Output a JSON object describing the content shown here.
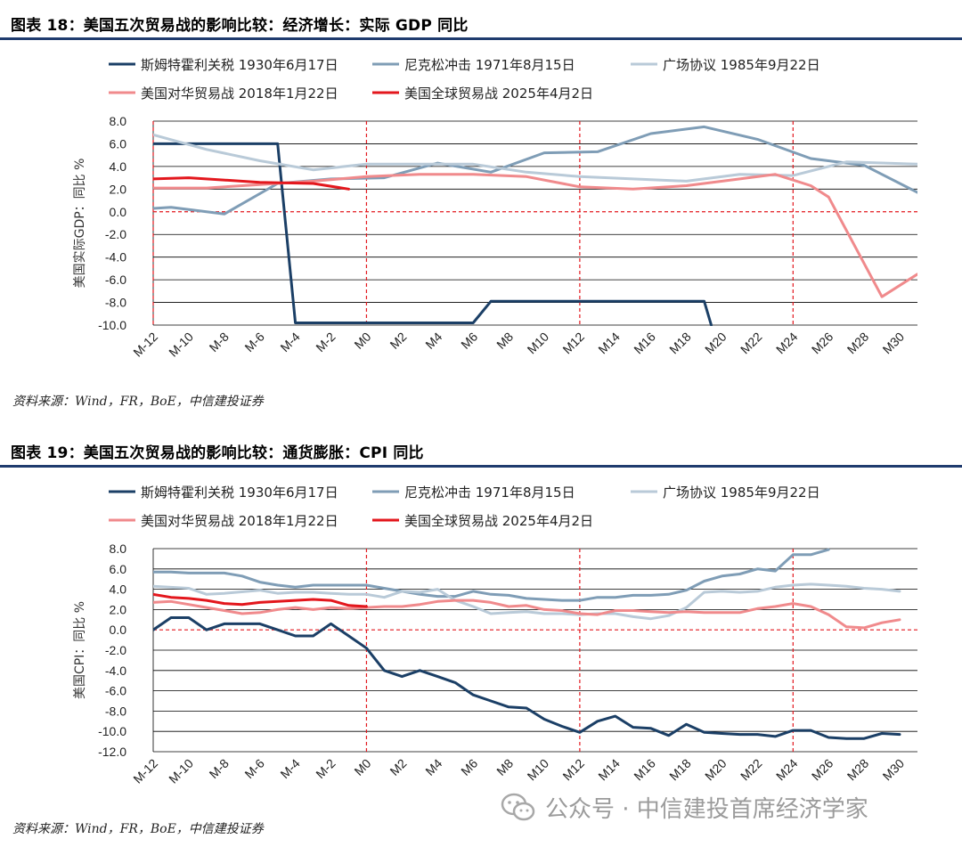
{
  "figures": [
    {
      "title": "图表 18：美国五次贸易战的影响比较：经济增长：实际 GDP 同比",
      "source": "资料来源：Wind，FR，BoE，中信建投证券"
    },
    {
      "title": "图表 19：美国五次贸易战的影响比较：通货膨胀：CPI 同比",
      "source": "资料来源：Wind，FR，BoE，中信建投证券"
    }
  ],
  "watermark": "公众号 · 中信建投首席经济学家",
  "legend": [
    {
      "name": "斯姆特霍利关税 1930年6月17日",
      "color": "#1b3f66"
    },
    {
      "name": "尼克松冲击 1971年8月15日",
      "color": "#7f9db6"
    },
    {
      "name": "广场协议 1985年9月22日",
      "color": "#b9cad8"
    },
    {
      "name": "美国对华贸易战 2018年1月22日",
      "color": "#f08a8c"
    },
    {
      "name": "美国全球贸易战 2025年4月2日",
      "color": "#e3171d"
    }
  ],
  "chart_data": [
    {
      "type": "line",
      "ylabel": "美国实际GDP：同比 %",
      "ylim": [
        -10,
        8
      ],
      "yticks": [
        8,
        6,
        4,
        2,
        0,
        -2,
        -4,
        -6,
        -8,
        -10
      ],
      "ytick_labels": [
        "8.0",
        "6.0",
        "4.0",
        "2.0",
        "0.0",
        "-2.0",
        "-4.0",
        "-6.0",
        "-8.0",
        "-10.0"
      ],
      "x_labels": [
        "M-12",
        "M-10",
        "M-8",
        "M-6",
        "M-4",
        "M-2",
        "M0",
        "M2",
        "M4",
        "M6",
        "M8",
        "M10",
        "M12",
        "M14",
        "M16",
        "M18",
        "M20",
        "M22",
        "M24",
        "M26",
        "M28",
        "M30"
      ],
      "x_range": [
        -12,
        31
      ],
      "vlines": [
        -12,
        0,
        12,
        24
      ],
      "zero_line": true,
      "grid": true,
      "series": [
        {
          "name": "斯姆特霍利关税 1930年6月17日",
          "color": "#1b3f66",
          "points": [
            [
              -12,
              6
            ],
            [
              -5,
              6
            ],
            [
              -4,
              -9.8
            ],
            [
              -3,
              -9.8
            ],
            [
              6,
              -9.8
            ],
            [
              7,
              -7.9
            ],
            [
              19,
              -7.9
            ],
            [
              19.4,
              -10
            ]
          ]
        },
        {
          "name": "尼克松冲击 1971年8月15日",
          "color": "#7f9db6",
          "points": [
            [
              -12,
              0.3
            ],
            [
              -11,
              0.4
            ],
            [
              -8,
              -0.2
            ],
            [
              -5,
              2.5
            ],
            [
              -2,
              2.9
            ],
            [
              1,
              3.0
            ],
            [
              4,
              4.3
            ],
            [
              7,
              3.5
            ],
            [
              10,
              5.2
            ],
            [
              13,
              5.3
            ],
            [
              16,
              6.9
            ],
            [
              19,
              7.5
            ],
            [
              22,
              6.4
            ],
            [
              25,
              4.7
            ],
            [
              28,
              4.1
            ],
            [
              31,
              1.7
            ]
          ]
        },
        {
          "name": "广场协议 1985年9月22日",
          "color": "#b9cad8",
          "points": [
            [
              -12,
              6.8
            ],
            [
              -9,
              5.5
            ],
            [
              -6,
              4.5
            ],
            [
              -3,
              3.7
            ],
            [
              0,
              4.2
            ],
            [
              3,
              4.2
            ],
            [
              6,
              4.2
            ],
            [
              9,
              3.5
            ],
            [
              12,
              3.1
            ],
            [
              15,
              2.9
            ],
            [
              18,
              2.7
            ],
            [
              21,
              3.3
            ],
            [
              24,
              3.2
            ],
            [
              27,
              4.4
            ],
            [
              31,
              4.2
            ]
          ]
        },
        {
          "name": "美国对华贸易战 2018年1月22日",
          "color": "#f08a8c",
          "points": [
            [
              -12,
              2.1
            ],
            [
              -9,
              2.1
            ],
            [
              -6,
              2.4
            ],
            [
              -3,
              2.7
            ],
            [
              0,
              3.1
            ],
            [
              3,
              3.3
            ],
            [
              6,
              3.3
            ],
            [
              9,
              3.1
            ],
            [
              12,
              2.2
            ],
            [
              15,
              2.0
            ],
            [
              18,
              2.3
            ],
            [
              21,
              2.9
            ],
            [
              23,
              3.3
            ],
            [
              25,
              2.3
            ],
            [
              26,
              1.3
            ],
            [
              29,
              -7.5
            ],
            [
              31,
              -5.5
            ]
          ]
        },
        {
          "name": "美国全球贸易战 2025年4月2日",
          "color": "#e3171d",
          "points": [
            [
              -12,
              2.9
            ],
            [
              -10,
              3.0
            ],
            [
              -6,
              2.6
            ],
            [
              -3,
              2.5
            ],
            [
              -1,
              2.0
            ]
          ]
        }
      ]
    },
    {
      "type": "line",
      "ylabel": "美国CPI：同比 %",
      "ylim": [
        -12,
        8
      ],
      "yticks": [
        8,
        6,
        4,
        2,
        0,
        -2,
        -4,
        -6,
        -8,
        -10,
        -12
      ],
      "ytick_labels": [
        "8.0",
        "6.0",
        "4.0",
        "2.0",
        "0.0",
        "-2.0",
        "-4.0",
        "-6.0",
        "-8.0",
        "-10.0",
        "-12.0"
      ],
      "x_labels": [
        "M-12",
        "M-10",
        "M-8",
        "M-6",
        "M-4",
        "M-2",
        "M0",
        "M2",
        "M4",
        "M6",
        "M8",
        "M10",
        "M12",
        "M14",
        "M16",
        "M18",
        "M20",
        "M22",
        "M24",
        "M26",
        "M28",
        "M30"
      ],
      "x_range": [
        -12,
        31
      ],
      "vlines": [
        0,
        12,
        24
      ],
      "zero_line": true,
      "grid": true,
      "series": [
        {
          "name": "斯姆特霍利关税 1930年6月17日",
          "color": "#1b3f66",
          "points": [
            [
              -12,
              0
            ],
            [
              -11,
              1.2
            ],
            [
              -10,
              1.2
            ],
            [
              -9,
              0
            ],
            [
              -8,
              0.6
            ],
            [
              -7,
              0.6
            ],
            [
              -6,
              0.6
            ],
            [
              -5,
              0
            ],
            [
              -4,
              -0.6
            ],
            [
              -3,
              -0.6
            ],
            [
              -2,
              0.6
            ],
            [
              -1,
              -0.6
            ],
            [
              0,
              -1.8
            ],
            [
              1,
              -4.0
            ],
            [
              2,
              -4.6
            ],
            [
              3,
              -4.0
            ],
            [
              4,
              -4.6
            ],
            [
              5,
              -5.2
            ],
            [
              6,
              -6.4
            ],
            [
              7,
              -7.0
            ],
            [
              8,
              -7.6
            ],
            [
              9,
              -7.7
            ],
            [
              10,
              -8.8
            ],
            [
              11,
              -9.5
            ],
            [
              12,
              -10.1
            ],
            [
              13,
              -9.0
            ],
            [
              14,
              -8.5
            ],
            [
              15,
              -9.6
            ],
            [
              16,
              -9.7
            ],
            [
              17,
              -10.4
            ],
            [
              18,
              -9.3
            ],
            [
              19,
              -10.1
            ],
            [
              20,
              -10.2
            ],
            [
              21,
              -10.3
            ],
            [
              22,
              -10.3
            ],
            [
              23,
              -10.5
            ],
            [
              24,
              -9.9
            ],
            [
              25,
              -9.9
            ],
            [
              26,
              -10.6
            ],
            [
              27,
              -10.7
            ],
            [
              28,
              -10.7
            ],
            [
              29,
              -10.2
            ],
            [
              30,
              -10.3
            ]
          ]
        },
        {
          "name": "尼克松冲击 1971年8月15日",
          "color": "#7f9db6",
          "points": [
            [
              -12,
              5.7
            ],
            [
              -11,
              5.7
            ],
            [
              -10,
              5.6
            ],
            [
              -9,
              5.6
            ],
            [
              -8,
              5.6
            ],
            [
              -7,
              5.3
            ],
            [
              -6,
              4.7
            ],
            [
              -5,
              4.4
            ],
            [
              -4,
              4.2
            ],
            [
              -3,
              4.4
            ],
            [
              -2,
              4.4
            ],
            [
              -1,
              4.4
            ],
            [
              0,
              4.4
            ],
            [
              1,
              4.1
            ],
            [
              2,
              3.8
            ],
            [
              3,
              3.5
            ],
            [
              4,
              3.3
            ],
            [
              5,
              3.3
            ],
            [
              6,
              3.8
            ],
            [
              7,
              3.5
            ],
            [
              8,
              3.4
            ],
            [
              9,
              3.1
            ],
            [
              10,
              3.0
            ],
            [
              11,
              2.9
            ],
            [
              12,
              2.9
            ],
            [
              13,
              3.2
            ],
            [
              14,
              3.2
            ],
            [
              15,
              3.4
            ],
            [
              16,
              3.4
            ],
            [
              17,
              3.5
            ],
            [
              18,
              3.9
            ],
            [
              19,
              4.8
            ],
            [
              20,
              5.3
            ],
            [
              21,
              5.5
            ],
            [
              22,
              6.0
            ],
            [
              23,
              5.8
            ],
            [
              24,
              7.4
            ],
            [
              25,
              7.4
            ],
            [
              26,
              7.9
            ]
          ]
        },
        {
          "name": "广场协议 1985年9月22日",
          "color": "#b9cad8",
          "points": [
            [
              -12,
              4.3
            ],
            [
              -10,
              4.1
            ],
            [
              -9,
              3.5
            ],
            [
              -8,
              3.6
            ],
            [
              -6,
              3.9
            ],
            [
              -5,
              3.6
            ],
            [
              -4,
              3.7
            ],
            [
              -3,
              3.7
            ],
            [
              -2,
              3.6
            ],
            [
              -1,
              3.5
            ],
            [
              0,
              3.5
            ],
            [
              1,
              3.2
            ],
            [
              2,
              3.8
            ],
            [
              3,
              3.7
            ],
            [
              4,
              4.0
            ],
            [
              5,
              2.9
            ],
            [
              6,
              2.3
            ],
            [
              7,
              1.6
            ],
            [
              8,
              1.7
            ],
            [
              9,
              1.8
            ],
            [
              10,
              1.6
            ],
            [
              11,
              1.6
            ],
            [
              12,
              1.5
            ],
            [
              13,
              1.6
            ],
            [
              14,
              1.6
            ],
            [
              15,
              1.3
            ],
            [
              16,
              1.1
            ],
            [
              17,
              1.4
            ],
            [
              18,
              2.2
            ],
            [
              19,
              3.7
            ],
            [
              20,
              3.8
            ],
            [
              21,
              3.7
            ],
            [
              22,
              3.8
            ],
            [
              23,
              4.2
            ],
            [
              24,
              4.4
            ],
            [
              25,
              4.5
            ],
            [
              26,
              4.4
            ],
            [
              27,
              4.3
            ],
            [
              28,
              4.1
            ],
            [
              29,
              4.0
            ],
            [
              30,
              3.8
            ]
          ]
        },
        {
          "name": "美国对华贸易战 2018年1月22日",
          "color": "#f08a8c",
          "points": [
            [
              -12,
              2.7
            ],
            [
              -11,
              2.8
            ],
            [
              -10,
              2.5
            ],
            [
              -9,
              2.2
            ],
            [
              -8,
              1.9
            ],
            [
              -7,
              1.6
            ],
            [
              -6,
              1.7
            ],
            [
              -5,
              2.0
            ],
            [
              -4,
              2.2
            ],
            [
              -3,
              2.0
            ],
            [
              -2,
              2.2
            ],
            [
              -1,
              2.1
            ],
            [
              0,
              2.2
            ],
            [
              1,
              2.3
            ],
            [
              2,
              2.3
            ],
            [
              3,
              2.5
            ],
            [
              4,
              2.8
            ],
            [
              5,
              2.9
            ],
            [
              6,
              2.9
            ],
            [
              7,
              2.7
            ],
            [
              8,
              2.3
            ],
            [
              9,
              2.4
            ],
            [
              10,
              2.0
            ],
            [
              11,
              1.9
            ],
            [
              12,
              1.6
            ],
            [
              13,
              1.5
            ],
            [
              14,
              1.9
            ],
            [
              15,
              1.9
            ],
            [
              16,
              1.8
            ],
            [
              17,
              1.7
            ],
            [
              18,
              1.8
            ],
            [
              19,
              1.7
            ],
            [
              20,
              1.7
            ],
            [
              21,
              1.7
            ],
            [
              22,
              2.1
            ],
            [
              23,
              2.3
            ],
            [
              24,
              2.6
            ],
            [
              25,
              2.3
            ],
            [
              26,
              1.5
            ],
            [
              27,
              0.3
            ],
            [
              28,
              0.2
            ],
            [
              29,
              0.7
            ],
            [
              30,
              1.0
            ]
          ]
        },
        {
          "name": "美国全球贸易战 2025年4月2日",
          "color": "#e3171d",
          "points": [
            [
              -12,
              3.5
            ],
            [
              -11,
              3.2
            ],
            [
              -10,
              3.1
            ],
            [
              -9,
              2.9
            ],
            [
              -8,
              2.6
            ],
            [
              -7,
              2.5
            ],
            [
              -6,
              2.7
            ],
            [
              -5,
              2.8
            ],
            [
              -4,
              2.9
            ],
            [
              -3,
              3.0
            ],
            [
              -2,
              2.9
            ],
            [
              -1,
              2.4
            ],
            [
              0,
              2.3
            ]
          ]
        }
      ]
    }
  ]
}
